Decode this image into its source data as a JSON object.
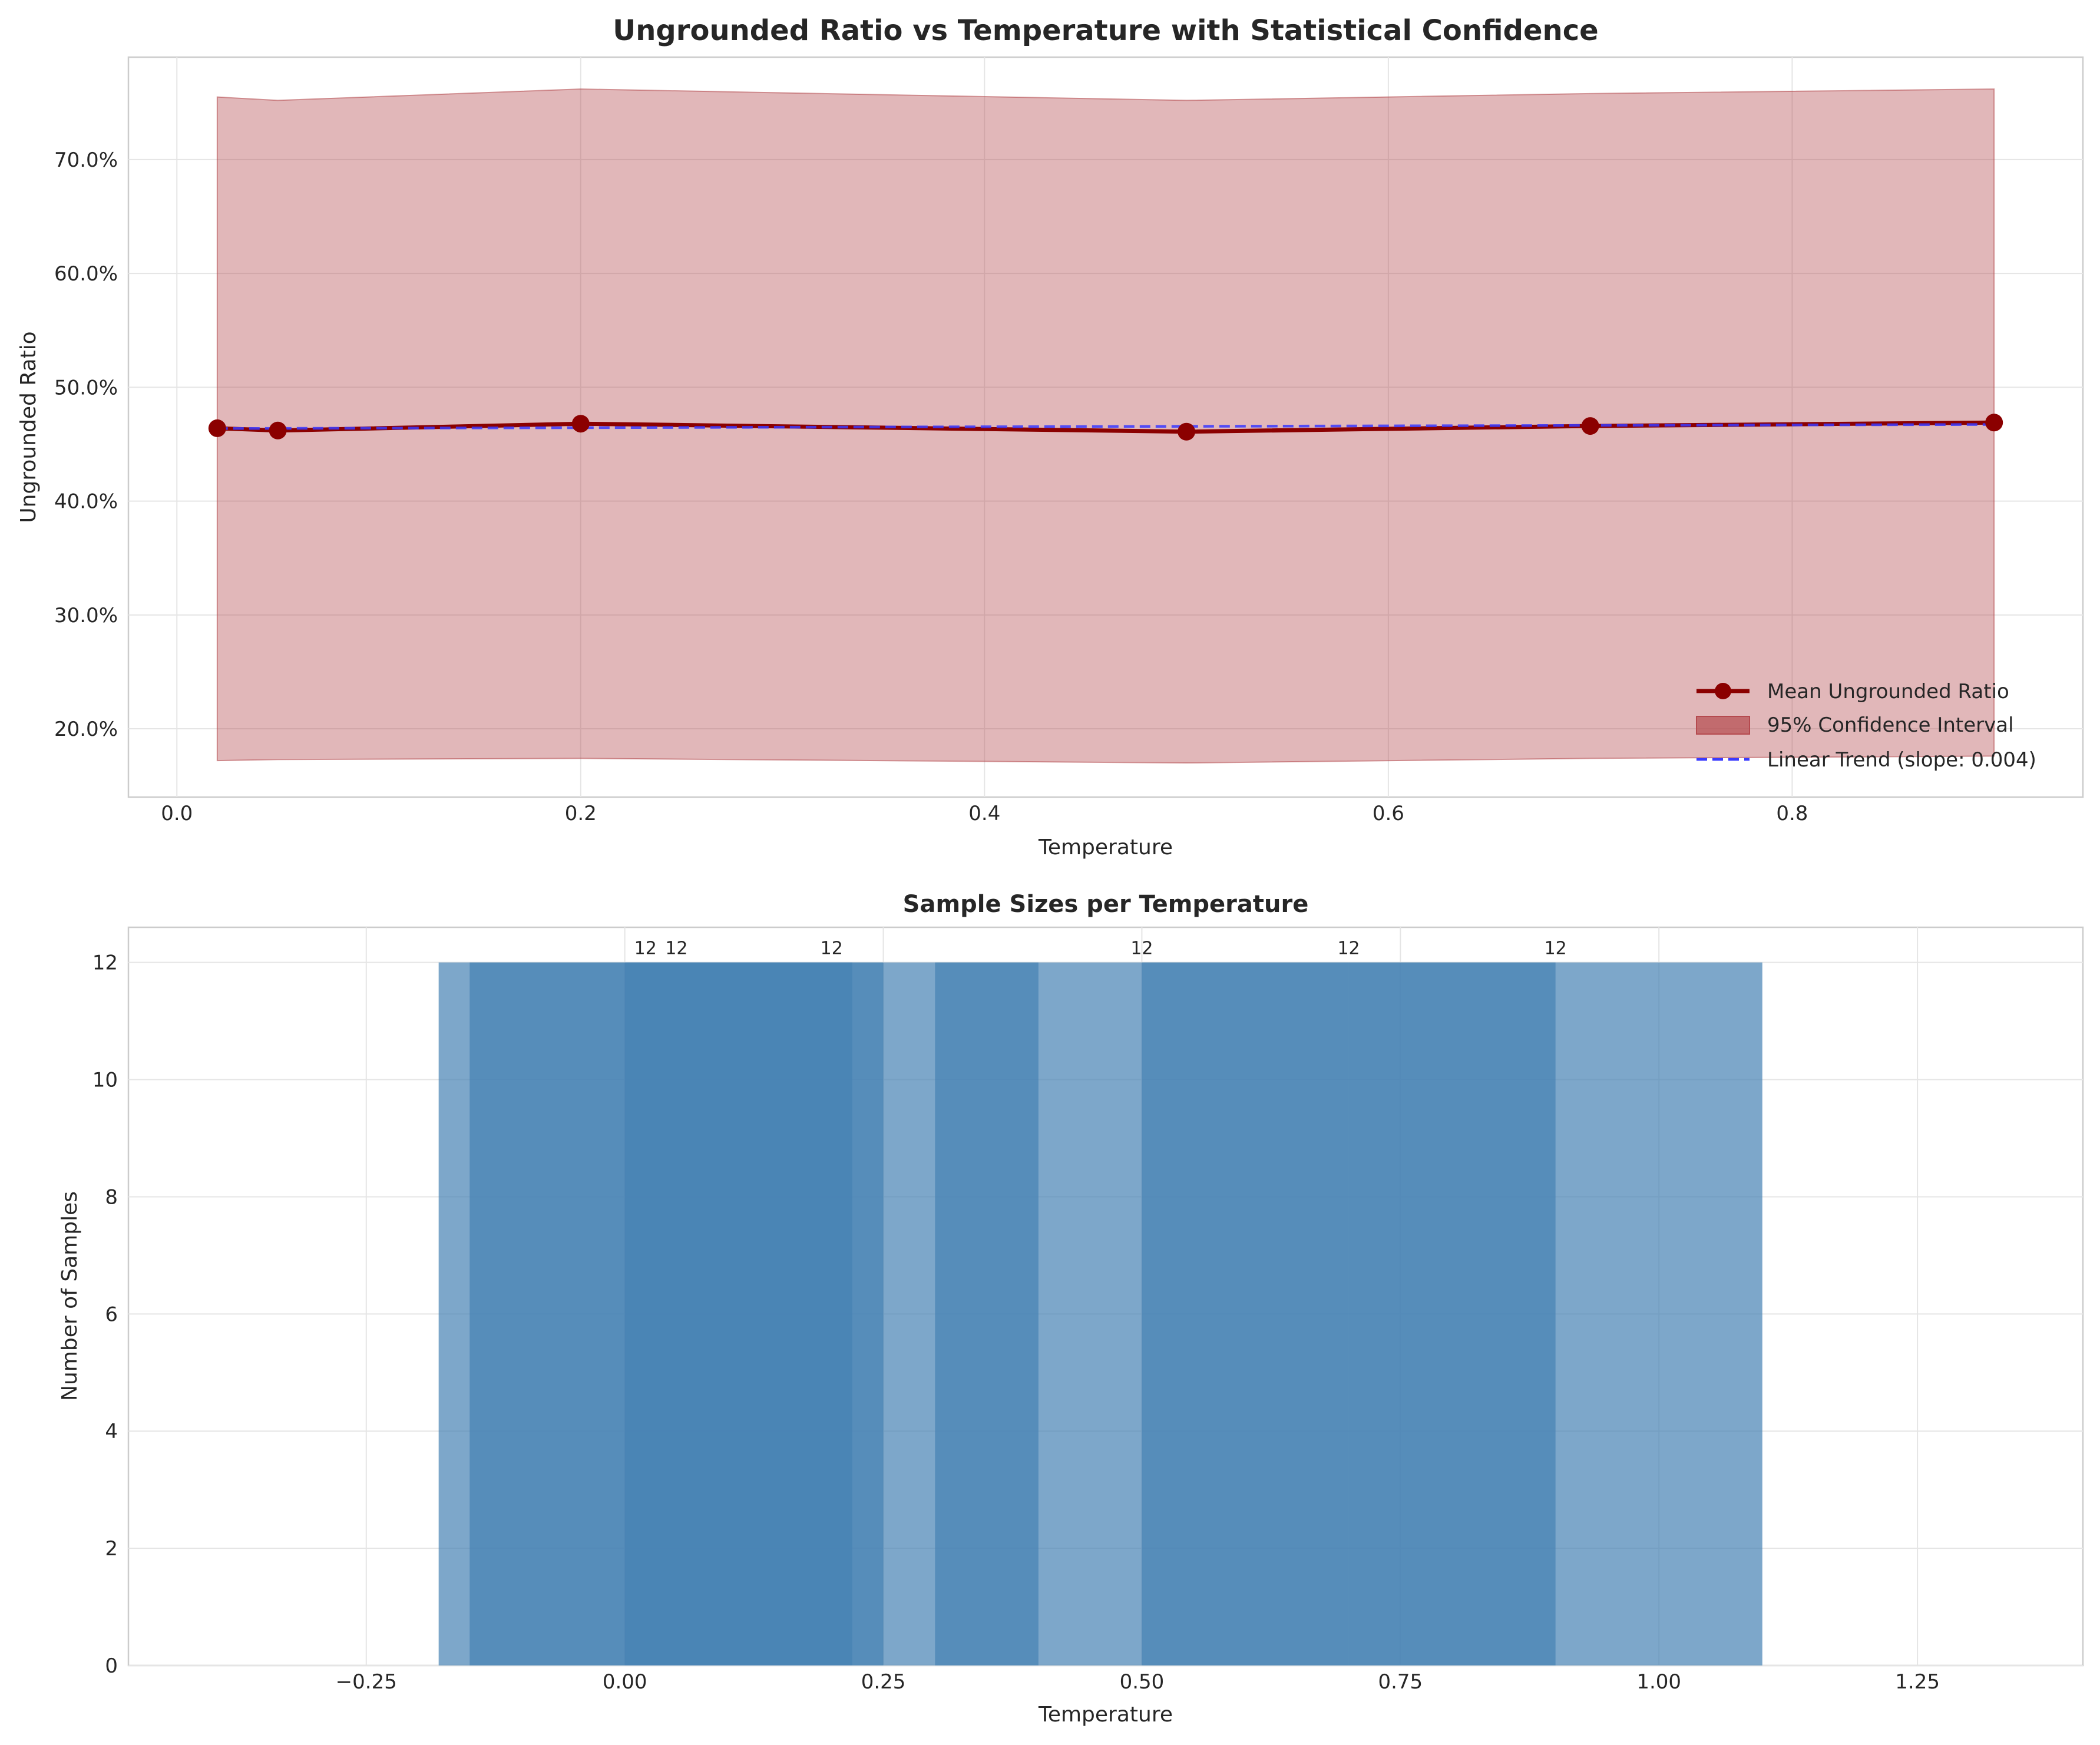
{
  "chart_data": [
    {
      "type": "line",
      "title": "Ungrounded Ratio vs Temperature with Statistical Confidence",
      "xlabel": "Temperature",
      "ylabel": "Ungrounded Ratio",
      "xlim": [
        -0.024,
        0.944
      ],
      "ylim": [
        0.14,
        0.79
      ],
      "xticks": [
        0.0,
        0.2,
        0.4,
        0.6,
        0.8
      ],
      "xtick_labels": [
        "0.0",
        "0.2",
        "0.4",
        "0.6",
        "0.8"
      ],
      "yticks": [
        0.2,
        0.3,
        0.4,
        0.5,
        0.6,
        0.7
      ],
      "ytick_labels": [
        "20.0%",
        "30.0%",
        "40.0%",
        "50.0%",
        "60.0%",
        "70.0%"
      ],
      "grid": true,
      "legend_position": "lower-right",
      "x": [
        0.02,
        0.05,
        0.2,
        0.5,
        0.7,
        0.9
      ],
      "series": [
        {
          "name": "Mean Ungrounded Ratio",
          "values": [
            0.464,
            0.462,
            0.468,
            0.461,
            0.466,
            0.469
          ],
          "color": "#8b0000"
        }
      ],
      "ci": {
        "name": "95% Confidence Interval",
        "lower": [
          0.172,
          0.173,
          0.174,
          0.17,
          0.174,
          0.176
        ],
        "upper": [
          0.755,
          0.752,
          0.762,
          0.752,
          0.758,
          0.762
        ],
        "color": "#b54a4f"
      },
      "trend": {
        "name": "Linear Trend (slope: 0.004)",
        "slope": 0.004,
        "intercept": 0.4637,
        "color": "#3a3aff"
      }
    },
    {
      "type": "bar",
      "title": "Sample Sizes per Temperature",
      "xlabel": "Temperature",
      "ylabel": "Number of Samples",
      "xlim": [
        -0.48,
        1.41
      ],
      "ylim": [
        0,
        12.6
      ],
      "xticks": [
        -0.25,
        0.0,
        0.25,
        0.5,
        0.75,
        1.0,
        1.25
      ],
      "xtick_labels": [
        "−0.25",
        "0.00",
        "0.25",
        "0.50",
        "0.75",
        "1.00",
        "1.25"
      ],
      "yticks": [
        0,
        2,
        4,
        6,
        8,
        10,
        12
      ],
      "ytick_labels": [
        "0",
        "2",
        "4",
        "6",
        "8",
        "10",
        "12"
      ],
      "grid": true,
      "categories": [
        0.02,
        0.05,
        0.2,
        0.5,
        0.7,
        0.9
      ],
      "bar_width": 0.4,
      "values": [
        12,
        12,
        12,
        12,
        12,
        12
      ],
      "value_labels": [
        "12",
        "12",
        "12",
        "12",
        "12",
        "12"
      ],
      "color": "#4682b4",
      "alpha": 0.7
    }
  ]
}
